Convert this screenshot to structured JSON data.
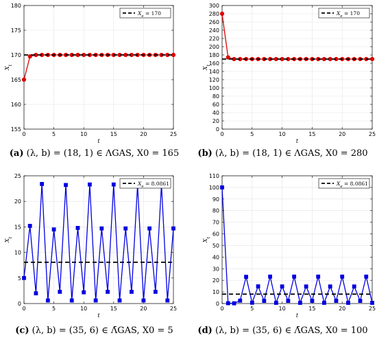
{
  "chart_data": [
    {
      "type": "line",
      "panel": "a",
      "caption": {
        "letter": "(a)",
        "text": "(λ, b) = (18, 1) ∈ ΛGAS, X0 = 165"
      },
      "xlabel": "t",
      "ylabel": "Xt",
      "xlim": [
        0,
        25
      ],
      "ylim": [
        155,
        180
      ],
      "xticks": [
        0,
        5,
        10,
        15,
        20,
        25
      ],
      "yticks": [
        155,
        160,
        165,
        170,
        175,
        180
      ],
      "grid": true,
      "legend_position": "top-right",
      "marker": "circle",
      "series": [
        {
          "name": "",
          "color": "#e00000",
          "x": [
            0,
            1,
            2,
            3,
            4,
            5,
            6,
            7,
            8,
            9,
            10,
            11,
            12,
            13,
            14,
            15,
            16,
            17,
            18,
            19,
            20,
            21,
            22,
            23,
            24,
            25
          ],
          "values": [
            165,
            169.7,
            170,
            170,
            170,
            170,
            170,
            170,
            170,
            170,
            170,
            170,
            170,
            170,
            170,
            170,
            170,
            170,
            170,
            170,
            170,
            170,
            170,
            170,
            170,
            170
          ]
        },
        {
          "name": "X_e = 170",
          "color": "#000000",
          "dashed": true,
          "x": [
            0,
            25
          ],
          "values": [
            170,
            170
          ]
        }
      ]
    },
    {
      "type": "line",
      "panel": "b",
      "caption": {
        "letter": "(b)",
        "text": "(λ, b) = (18, 1) ∈ ΛGAS, X0 = 280"
      },
      "xlabel": "t",
      "ylabel": "Xt",
      "xlim": [
        0,
        25
      ],
      "ylim": [
        0,
        300
      ],
      "xticks": [
        0,
        5,
        10,
        15,
        20,
        25
      ],
      "yticks": [
        0,
        20,
        40,
        60,
        80,
        100,
        120,
        140,
        160,
        180,
        200,
        220,
        240,
        260,
        280,
        300
      ],
      "grid": true,
      "legend_position": "top-right",
      "marker": "circle",
      "series": [
        {
          "name": "",
          "color": "#e00000",
          "x": [
            0,
            1,
            2,
            3,
            4,
            5,
            6,
            7,
            8,
            9,
            10,
            11,
            12,
            13,
            14,
            15,
            16,
            17,
            18,
            19,
            20,
            21,
            22,
            23,
            24,
            25
          ],
          "values": [
            280,
            174,
            170,
            170,
            170,
            170,
            170,
            170,
            170,
            170,
            170,
            170,
            170,
            170,
            170,
            170,
            170,
            170,
            170,
            170,
            170,
            170,
            170,
            170,
            170,
            170
          ]
        },
        {
          "name": "X_e = 170",
          "color": "#000000",
          "dashed": true,
          "x": [
            0,
            25
          ],
          "values": [
            170,
            170
          ]
        }
      ]
    },
    {
      "type": "line",
      "panel": "c",
      "caption": {
        "letter": "(c)",
        "text": "(λ, b) = (35, 6) ∈ Λ̄GAS, X0 = 5"
      },
      "xlabel": "t",
      "ylabel": "Xt",
      "xlim": [
        0,
        25
      ],
      "ylim": [
        0,
        25
      ],
      "xticks": [
        0,
        5,
        10,
        15,
        20,
        25
      ],
      "yticks": [
        0,
        5,
        10,
        15,
        20,
        25
      ],
      "grid": true,
      "legend_position": "top-right",
      "marker": "square",
      "series": [
        {
          "name": "",
          "color": "#0000e0",
          "x": [
            0,
            1,
            2,
            3,
            4,
            5,
            6,
            7,
            8,
            9,
            10,
            11,
            12,
            13,
            14,
            15,
            16,
            17,
            18,
            19,
            20,
            21,
            22,
            23,
            24,
            25
          ],
          "values": [
            5,
            15.2,
            2,
            23.4,
            0.6,
            14.5,
            2.3,
            23.2,
            0.6,
            14.8,
            2.2,
            23.3,
            0.6,
            14.7,
            2.3,
            23.3,
            0.6,
            14.7,
            2.3,
            23.2,
            0.6,
            14.7,
            2.3,
            23.3,
            0.6,
            14.7
          ]
        },
        {
          "name": "X_e = 8.0861",
          "color": "#000000",
          "dashed": true,
          "x": [
            0,
            25
          ],
          "values": [
            8.0861,
            8.0861
          ]
        }
      ]
    },
    {
      "type": "line",
      "panel": "d",
      "caption": {
        "letter": "(d)",
        "text": "(λ, b) = (35, 6) ∈ Λ̄GAS, X0 = 100"
      },
      "xlabel": "t",
      "ylabel": "Xt",
      "xlim": [
        0,
        25
      ],
      "ylim": [
        0,
        110
      ],
      "xticks": [
        0,
        5,
        10,
        15,
        20,
        25
      ],
      "yticks": [
        0,
        10,
        20,
        30,
        40,
        50,
        60,
        70,
        80,
        90,
        100,
        110
      ],
      "grid": true,
      "legend_position": "top-right",
      "marker": "square",
      "series": [
        {
          "name": "",
          "color": "#0000e0",
          "x": [
            0,
            1,
            2,
            3,
            4,
            5,
            6,
            7,
            8,
            9,
            10,
            11,
            12,
            13,
            14,
            15,
            16,
            17,
            18,
            19,
            20,
            21,
            22,
            23,
            24,
            25
          ],
          "values": [
            100,
            0.3,
            0.2,
            2.5,
            23,
            0.7,
            14.8,
            2.3,
            23.2,
            0.6,
            14.7,
            2.3,
            23.2,
            0.6,
            14.7,
            2.3,
            23.2,
            0.6,
            14.7,
            2.3,
            23.2,
            0.6,
            14.7,
            2.3,
            23.2,
            0.6
          ]
        },
        {
          "name": "X_e = 8.0861",
          "color": "#000000",
          "dashed": true,
          "x": [
            0,
            25
          ],
          "values": [
            8.0861,
            8.0861
          ]
        }
      ]
    }
  ]
}
